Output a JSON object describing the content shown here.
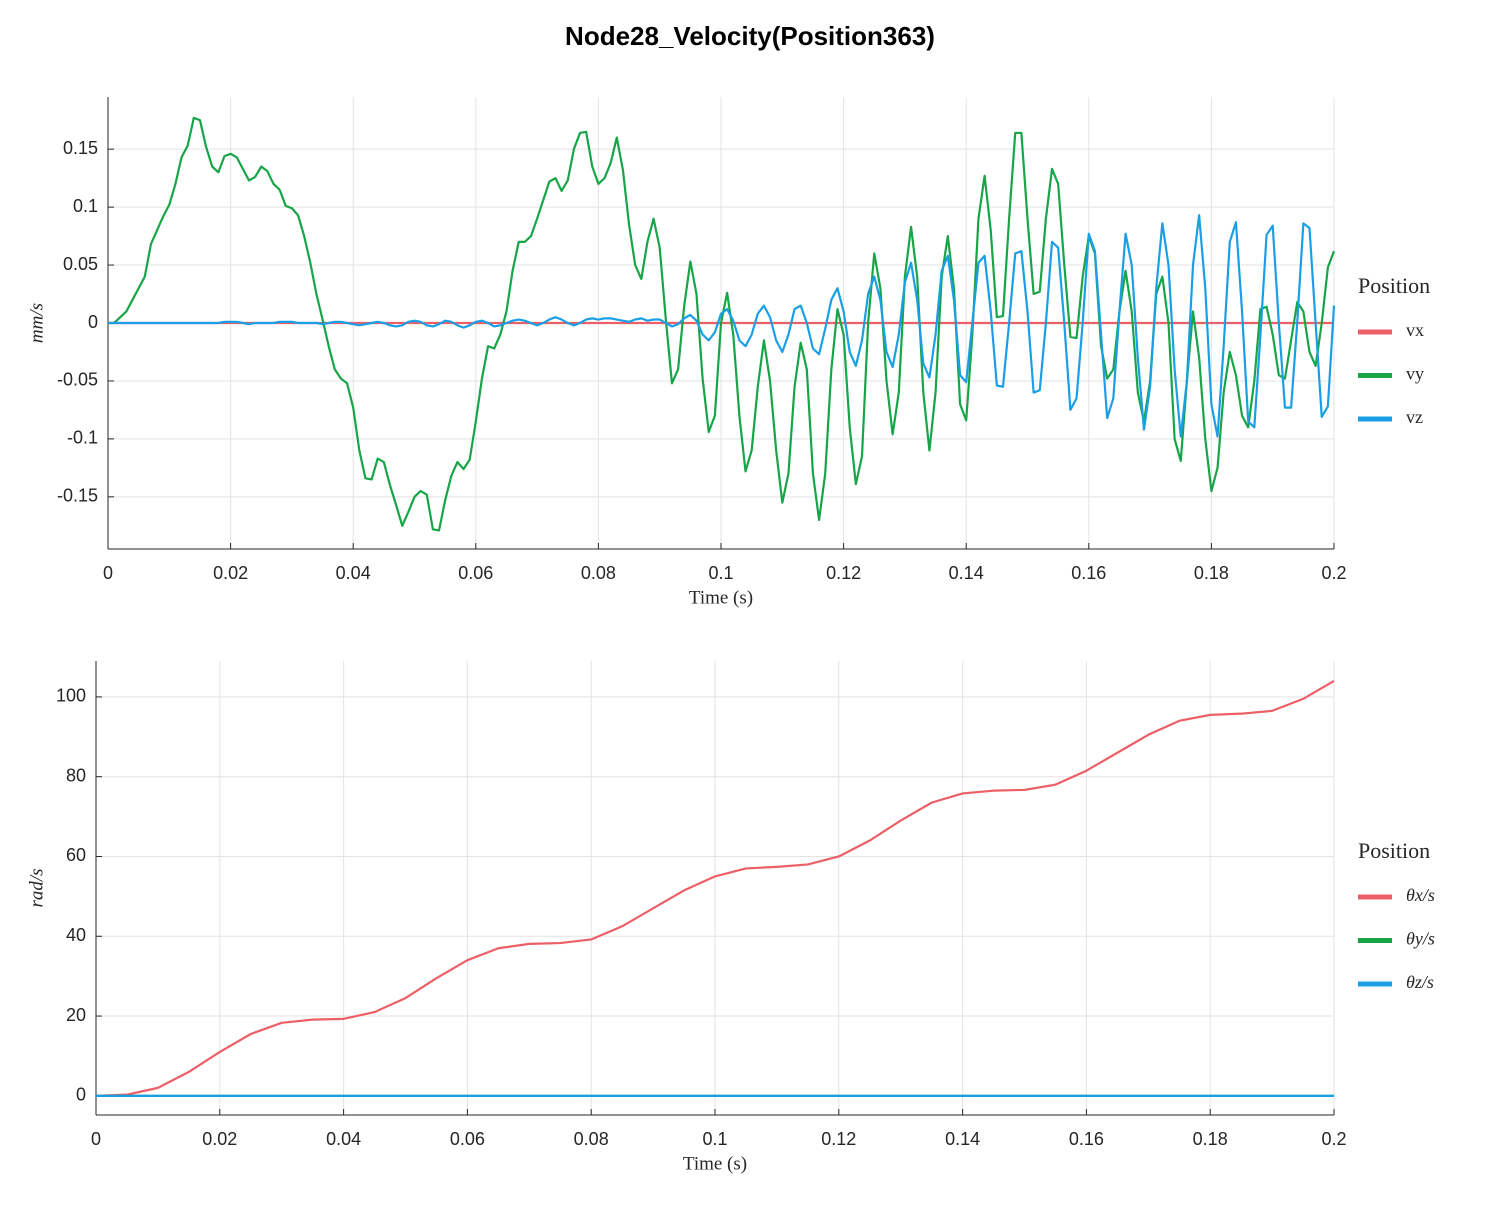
{
  "title": "Node28_Velocity(Position363)",
  "chart_data": [
    {
      "type": "line",
      "xlabel": "Time (s)",
      "ylabel": "mm/s",
      "legend_title": "Position",
      "legend": "right",
      "grid": true,
      "xlim": [
        0,
        0.2
      ],
      "xticks": [
        0,
        0.02,
        0.04,
        0.06,
        0.08,
        0.1,
        0.12,
        0.14,
        0.16,
        0.18,
        0.2
      ],
      "ylim": [
        -0.195,
        0.195
      ],
      "yticks": [
        -0.15,
        -0.1,
        -0.05,
        0,
        0.05,
        0.1,
        0.15
      ],
      "x": [
        0,
        0.001,
        0.002,
        0.003,
        0.004,
        0.005,
        0.006,
        0.007,
        0.008,
        0.009,
        0.01,
        0.011,
        0.012,
        0.013,
        0.014,
        0.015,
        0.016,
        0.017,
        0.018,
        0.019,
        0.02,
        0.021,
        0.022,
        0.023,
        0.024,
        0.025,
        0.026,
        0.027,
        0.028,
        0.029,
        0.03,
        0.031,
        0.032,
        0.033,
        0.034,
        0.035,
        0.036,
        0.037,
        0.038,
        0.039,
        0.04,
        0.041,
        0.042,
        0.043,
        0.044,
        0.045,
        0.046,
        0.047,
        0.048,
        0.049,
        0.05,
        0.051,
        0.052,
        0.053,
        0.054,
        0.055,
        0.056,
        0.057,
        0.058,
        0.059,
        0.06,
        0.061,
        0.062,
        0.063,
        0.064,
        0.065,
        0.066,
        0.067,
        0.068,
        0.069,
        0.07,
        0.071,
        0.072,
        0.073,
        0.074,
        0.075,
        0.076,
        0.077,
        0.078,
        0.079,
        0.08,
        0.081,
        0.082,
        0.083,
        0.084,
        0.085,
        0.086,
        0.087,
        0.088,
        0.089,
        0.09,
        0.091,
        0.092,
        0.093,
        0.094,
        0.095,
        0.096,
        0.097,
        0.098,
        0.099,
        0.1,
        0.101,
        0.102,
        0.103,
        0.104,
        0.105,
        0.106,
        0.107,
        0.108,
        0.109,
        0.11,
        0.111,
        0.112,
        0.113,
        0.114,
        0.115,
        0.116,
        0.117,
        0.118,
        0.119,
        0.12,
        0.121,
        0.122,
        0.123,
        0.124,
        0.125,
        0.126,
        0.127,
        0.128,
        0.129,
        0.13,
        0.131,
        0.132,
        0.133,
        0.134,
        0.135,
        0.136,
        0.137,
        0.138,
        0.139,
        0.14,
        0.141,
        0.142,
        0.143,
        0.144,
        0.145,
        0.146,
        0.147,
        0.148,
        0.149,
        0.15,
        0.151,
        0.152,
        0.153,
        0.154,
        0.155,
        0.156,
        0.157,
        0.158,
        0.159,
        0.16,
        0.161,
        0.162,
        0.163,
        0.164,
        0.165,
        0.166,
        0.167,
        0.168,
        0.169,
        0.17,
        0.171,
        0.172,
        0.173,
        0.174,
        0.175,
        0.176,
        0.177,
        0.178,
        0.179,
        0.18,
        0.181,
        0.182,
        0.183,
        0.184,
        0.185,
        0.186,
        0.187,
        0.188,
        0.189,
        0.19,
        0.191,
        0.192,
        0.193,
        0.194,
        0.195,
        0.196,
        0.197,
        0.198,
        0.199,
        0.2
      ],
      "series": [
        {
          "name": "vx",
          "color": "#ec5f67",
          "values": [
            0,
            0,
            0,
            0,
            0,
            0,
            0,
            0,
            0,
            0,
            0,
            0,
            0,
            0,
            0,
            0,
            0,
            0,
            0,
            0,
            0,
            0,
            0,
            0,
            0,
            0,
            0,
            0,
            0,
            0,
            0,
            0,
            0,
            0,
            0,
            0,
            0,
            0,
            0,
            0,
            0,
            0,
            0,
            0,
            0,
            0,
            0,
            0,
            0,
            0,
            0,
            0,
            0,
            0,
            0,
            0,
            0,
            0,
            0,
            0,
            0,
            0,
            0,
            0,
            0,
            0,
            0,
            0,
            0,
            0,
            0,
            0,
            0,
            0,
            0,
            0,
            0,
            0,
            0,
            0,
            0,
            0,
            0,
            0,
            0,
            0,
            0,
            0,
            0,
            0,
            0,
            0,
            0,
            0,
            0,
            0,
            0,
            0,
            0,
            0,
            0,
            0,
            0,
            0,
            0,
            0,
            0,
            0,
            0,
            0,
            0,
            0,
            0,
            0,
            0,
            0,
            0,
            0,
            0,
            0,
            0,
            0,
            0,
            0,
            0,
            0,
            0,
            0,
            0,
            0,
            0,
            0,
            0,
            0,
            0,
            0,
            0,
            0,
            0,
            0,
            0,
            0,
            0,
            0,
            0,
            0,
            0,
            0,
            0,
            0,
            0,
            0,
            0,
            0,
            0,
            0,
            0,
            0,
            0,
            0,
            0,
            0,
            0,
            0,
            0,
            0,
            0,
            0,
            0,
            0,
            0,
            0,
            0,
            0,
            0,
            0,
            0,
            0,
            0,
            0,
            0,
            0,
            0,
            0,
            0,
            0,
            0,
            0,
            0,
            0,
            0,
            0,
            0,
            0,
            0,
            0,
            0,
            0,
            0,
            0,
            0
          ]
        },
        {
          "name": "vy",
          "color": "#17a548",
          "values": [
            0,
            0,
            0.005,
            0.01,
            0.02,
            0.03,
            0.04,
            0.068,
            0.08,
            0.092,
            0.102,
            0.12,
            0.143,
            0.153,
            0.177,
            0.175,
            0.152,
            0.135,
            0.13,
            0.144,
            0.146,
            0.143,
            0.133,
            0.123,
            0.126,
            0.135,
            0.131,
            0.12,
            0.115,
            0.101,
            0.099,
            0.093,
            0.075,
            0.052,
            0.025,
            0.003,
            -0.02,
            -0.04,
            -0.048,
            -0.052,
            -0.073,
            -0.11,
            -0.134,
            -0.135,
            -0.117,
            -0.12,
            -0.14,
            -0.157,
            -0.175,
            -0.163,
            -0.15,
            -0.145,
            -0.148,
            -0.178,
            -0.179,
            -0.153,
            -0.132,
            -0.12,
            -0.126,
            -0.118,
            -0.085,
            -0.048,
            -0.02,
            -0.022,
            -0.01,
            0.01,
            0.045,
            0.07,
            0.07,
            0.075,
            0.09,
            0.106,
            0.122,
            0.125,
            0.114,
            0.123,
            0.15,
            0.164,
            0.165,
            0.135,
            0.12,
            0.125,
            0.138,
            0.16,
            0.132,
            0.085,
            0.05,
            0.038,
            0.07,
            0.09,
            0.065,
            0.003,
            -0.052,
            -0.04,
            0.015,
            0.053,
            0.025,
            -0.048,
            -0.094,
            -0.08,
            0,
            0.026,
            -0.01,
            -0.08,
            -0.128,
            -0.11,
            -0.055,
            -0.015,
            -0.05,
            -0.11,
            -0.155,
            -0.13,
            -0.055,
            -0.017,
            -0.04,
            -0.13,
            -0.17,
            -0.13,
            -0.04,
            0.012,
            -0.01,
            -0.09,
            -0.139,
            -0.115,
            0,
            0.06,
            0.03,
            -0.05,
            -0.096,
            -0.06,
            0.04,
            0.083,
            0.04,
            -0.06,
            -0.11,
            -0.06,
            0.04,
            0.075,
            0.03,
            -0.07,
            -0.084,
            -0.01,
            0.09,
            0.127,
            0.08,
            0.005,
            0.006,
            0.09,
            0.164,
            0.164,
            0.09,
            0.025,
            0.027,
            0.09,
            0.133,
            0.12,
            0.05,
            -0.012,
            -0.013,
            0.04,
            0.075,
            0.06,
            -0.02,
            -0.048,
            -0.04,
            0.01,
            0.045,
            0.01,
            -0.06,
            -0.085,
            -0.05,
            0.025,
            0.04,
            0,
            -0.1,
            -0.119,
            -0.05,
            0.01,
            -0.03,
            -0.1,
            -0.145,
            -0.125,
            -0.06,
            -0.025,
            -0.045,
            -0.08,
            -0.09,
            -0.05,
            0.012,
            0.014,
            -0.01,
            -0.045,
            -0.048,
            -0.015,
            0.018,
            0.01,
            -0.025,
            -0.037,
            0,
            0.048,
            0.062
          ]
        },
        {
          "name": "vz",
          "color": "#1a9fe6",
          "values": [
            0,
            0,
            0,
            0,
            0,
            0,
            0,
            0,
            0,
            0,
            0,
            0,
            0,
            0,
            0,
            0,
            0,
            0,
            0,
            0.001,
            0.001,
            0.001,
            0,
            -0.001,
            0,
            0,
            0,
            0,
            0.001,
            0.001,
            0.001,
            0,
            0,
            0,
            0,
            -0.001,
            0,
            0.001,
            0.001,
            0,
            -0.001,
            -0.002,
            -0.001,
            0,
            0.001,
            0,
            -0.002,
            -0.003,
            -0.002,
            0.001,
            0.002,
            0.001,
            -0.002,
            -0.003,
            -0.001,
            0.002,
            0.001,
            -0.002,
            -0.004,
            -0.002,
            0.001,
            0.002,
            0,
            -0.003,
            -0.002,
            0,
            0.002,
            0.003,
            0.002,
            0,
            -0.002,
            0,
            0.003,
            0.005,
            0.003,
            0,
            -0.002,
            0,
            0.003,
            0.004,
            0.003,
            0.004,
            0.004,
            0.003,
            0.002,
            0.001,
            0.003,
            0.004,
            0.002,
            0.003,
            0.003,
            0,
            -0.003,
            -0.001,
            0.004,
            0.007,
            0.002,
            -0.01,
            -0.015,
            -0.008,
            0.008,
            0.012,
            0.002,
            -0.015,
            -0.02,
            -0.01,
            0.008,
            0.015,
            0.005,
            -0.015,
            -0.025,
            -0.01,
            0.012,
            0.015,
            0,
            -0.022,
            -0.027,
            -0.005,
            0.02,
            0.03,
            0.01,
            -0.025,
            -0.037,
            -0.015,
            0.025,
            0.04,
            0.02,
            -0.025,
            -0.038,
            -0.01,
            0.035,
            0.052,
            0.02,
            -0.035,
            -0.047,
            -0.01,
            0.045,
            0.058,
            0.02,
            -0.045,
            -0.051,
            0,
            0.052,
            0.058,
            0.01,
            -0.054,
            -0.055,
            0,
            0.06,
            0.062,
            0.01,
            -0.06,
            -0.058,
            0,
            0.07,
            0.065,
            0,
            -0.075,
            -0.065,
            0,
            0.077,
            0.062,
            -0.01,
            -0.082,
            -0.065,
            0.01,
            0.077,
            0.05,
            -0.03,
            -0.092,
            -0.055,
            0.03,
            0.086,
            0.05,
            -0.04,
            -0.098,
            -0.05,
            0.05,
            0.093,
            0.03,
            -0.07,
            -0.098,
            -0.02,
            0.07,
            0.087,
            0.01,
            -0.085,
            -0.09,
            -0.01,
            0.076,
            0.084,
            0,
            -0.073,
            -0.073,
            0,
            0.086,
            0.082,
            0,
            -0.081,
            -0.072,
            0.015
          ]
        }
      ]
    },
    {
      "type": "line",
      "xlabel": "Time (s)",
      "ylabel": "rad/s",
      "legend_title": "Position",
      "legend": "right",
      "grid": true,
      "xlim": [
        0,
        0.2
      ],
      "xticks": [
        0,
        0.02,
        0.04,
        0.06,
        0.08,
        0.1,
        0.12,
        0.14,
        0.16,
        0.18,
        0.2
      ],
      "ylim": [
        -4.8,
        109
      ],
      "yticks": [
        0,
        20,
        40,
        60,
        80,
        100
      ],
      "x": [
        0,
        0.005,
        0.01,
        0.015,
        0.02,
        0.025,
        0.03,
        0.035,
        0.04,
        0.045,
        0.05,
        0.055,
        0.06,
        0.065,
        0.07,
        0.075,
        0.08,
        0.085,
        0.09,
        0.095,
        0.1,
        0.105,
        0.11,
        0.115,
        0.12,
        0.125,
        0.13,
        0.135,
        0.14,
        0.145,
        0.15,
        0.155,
        0.16,
        0.165,
        0.17,
        0.175,
        0.18,
        0.185,
        0.19,
        0.195,
        0.2
      ],
      "series": [
        {
          "name": "θx/s",
          "color": "#ec5f67",
          "values": [
            0,
            0.3,
            2,
            6,
            11,
            15.5,
            18.3,
            19.1,
            19.3,
            21,
            24.5,
            29.5,
            34,
            37,
            38.1,
            38.3,
            39.2,
            42.5,
            47,
            51.5,
            55,
            57,
            57.4,
            58,
            60,
            64,
            69,
            73.5,
            75.8,
            76.5,
            76.7,
            78,
            81.5,
            86,
            90.5,
            94,
            95.5,
            95.8,
            96.5,
            99.5,
            104
          ]
        },
        {
          "name": "θy/s",
          "color": "#17a548",
          "values": [
            0,
            0,
            0,
            0,
            0,
            0,
            0,
            0,
            0,
            0,
            0,
            0,
            0,
            0,
            0,
            0,
            0,
            0,
            0,
            0,
            0,
            0,
            0,
            0,
            0,
            0,
            0,
            0,
            0,
            0,
            0,
            0,
            0,
            0,
            0,
            0,
            0,
            0,
            0,
            0,
            0
          ]
        },
        {
          "name": "θz/s",
          "color": "#1a9fe6",
          "values": [
            0,
            0,
            0,
            0,
            0,
            0,
            0,
            0,
            0,
            0,
            0,
            0,
            0,
            0,
            0,
            0,
            0,
            0,
            0,
            0,
            0,
            0,
            0,
            0,
            0,
            0,
            0,
            0,
            0,
            0,
            0,
            0,
            0,
            0,
            0,
            0,
            0,
            0,
            0,
            0,
            0
          ]
        }
      ]
    }
  ]
}
